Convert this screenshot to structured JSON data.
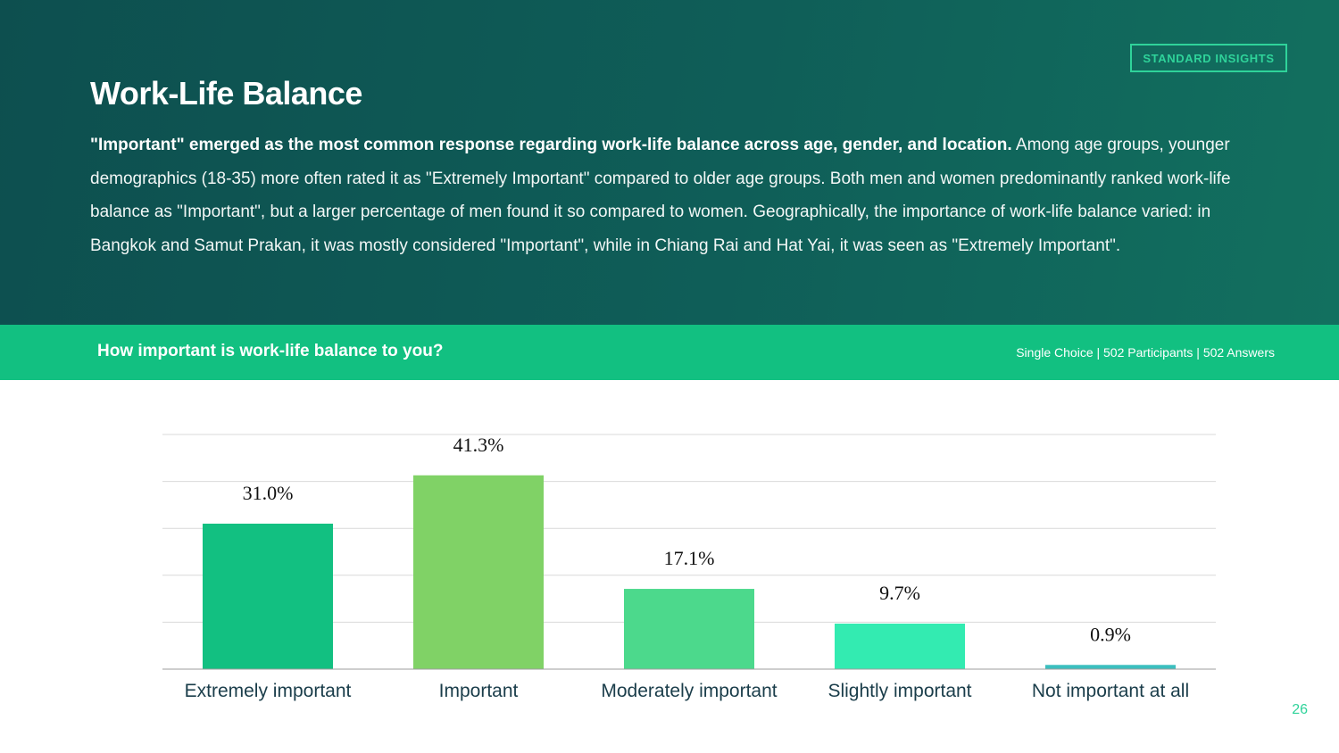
{
  "header": {
    "badge": "STANDARD INSIGHTS",
    "title": "Work-Life Balance",
    "summary_lead": "\"Important\" emerged as the most common response regarding work-life balance across age, gender, and location.",
    "summary_body": " Among age groups, younger demographics (18-35) more often rated it as \"Extremely Important\" compared to older age groups. Both men and women predominantly ranked work-life balance as \"Important\", but a larger percentage of men found it so compared to women. Geographically, the importance of work-life balance varied: in Bangkok and Samut Prakan, it was mostly considered \"Important\", while in Chiang Rai and Hat Yai, it was seen as \"Extremely Important\"."
  },
  "question_bar": {
    "question": "How important is work-life balance to you?",
    "meta": "Single Choice |  502 Participants | 502 Answers"
  },
  "chart_data": {
    "type": "bar",
    "categories": [
      "Extremely important",
      "Important",
      "Moderately important",
      "Slightly important",
      "Not important at all"
    ],
    "values": [
      31.0,
      41.3,
      17.1,
      9.7,
      0.9
    ],
    "value_labels": [
      "31.0%",
      "41.3%",
      "17.1%",
      "9.7%",
      "0.9%"
    ],
    "colors": [
      "#12c081",
      "#80d266",
      "#4cd98c",
      "#33ebb1",
      "#3cbfbf"
    ],
    "ylim": [
      0,
      50
    ],
    "grid": true,
    "legend": "none"
  },
  "page_number": "26"
}
